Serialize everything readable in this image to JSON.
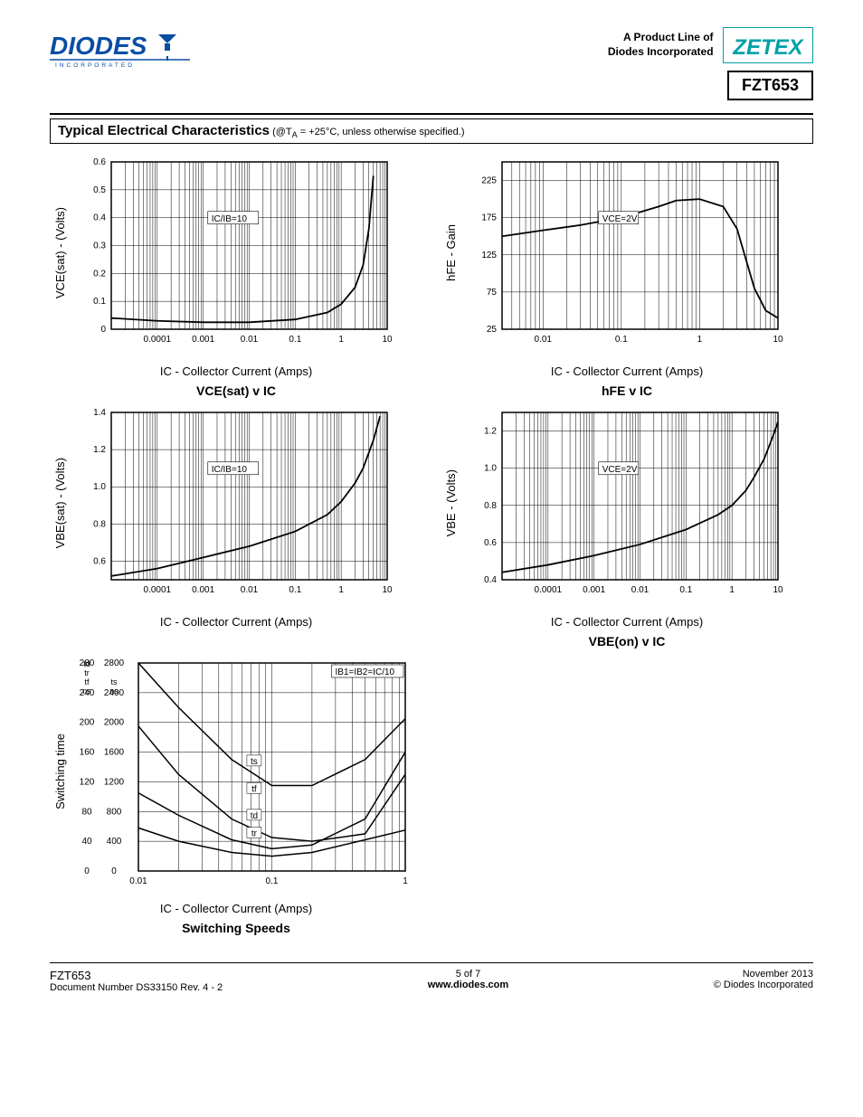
{
  "header": {
    "tagline_line1": "A Product Line of",
    "tagline_line2": "Diodes Incorporated",
    "part_number": "FZT653",
    "diodes_label": "INCORPORATED",
    "zetex_label": "ZETEX"
  },
  "section": {
    "title": "Typical Electrical Characteristics",
    "subtitle": " (@T",
    "subtitle_sub": "A",
    "subtitle_tail": " = +25°C, unless otherwise specified.)"
  },
  "colors": {
    "diodes_blue": "#0b4ea2",
    "zetex_teal": "#00a0a8",
    "line": "#000000",
    "grid": "#000000",
    "bg": "#ffffff"
  },
  "chart1": {
    "type": "line",
    "ylabel": "VCE(sat) - (Volts)",
    "xlabel": "IC - Collector Current (Amps)",
    "title": "VCE(sat) v IC",
    "annotation": "IC/IB=10",
    "x_ticks": [
      "0.0001",
      "0.001",
      "0.01",
      "0.1",
      "1",
      "10"
    ],
    "y_ticks": [
      "0",
      "0.1",
      "0.2",
      "0.3",
      "0.4",
      "0.5",
      "0.6"
    ],
    "xlim": [
      1e-05,
      10
    ],
    "ylim": [
      0,
      0.6
    ],
    "x_scale": "log",
    "points_x": [
      1e-05,
      0.0001,
      0.001,
      0.01,
      0.1,
      0.5,
      1,
      2,
      3,
      4,
      5
    ],
    "points_y": [
      0.04,
      0.03,
      0.025,
      0.025,
      0.035,
      0.06,
      0.09,
      0.15,
      0.23,
      0.36,
      0.55
    ],
    "line_color": "#000000",
    "line_width": 1.8
  },
  "chart2": {
    "type": "line",
    "ylabel": "hFE - Gain",
    "xlabel": "IC - Collector Current (Amps)",
    "title": "hFE v IC",
    "annotation": "VCE=2V",
    "x_ticks": [
      "0.01",
      "0.1",
      "1",
      "10"
    ],
    "y_ticks": [
      "25",
      "75",
      "125",
      "175",
      "225"
    ],
    "xlim": [
      0.003,
      10
    ],
    "ylim": [
      25,
      250
    ],
    "x_scale": "log",
    "points_x": [
      0.003,
      0.01,
      0.03,
      0.1,
      0.3,
      0.5,
      1,
      2,
      3,
      5,
      7,
      10
    ],
    "points_y": [
      150,
      158,
      165,
      175,
      190,
      198,
      200,
      190,
      160,
      80,
      50,
      40
    ],
    "line_color": "#000000",
    "line_width": 1.8
  },
  "chart3": {
    "type": "line",
    "ylabel": "VBE(sat) - (Volts)",
    "xlabel": "IC - Collector Current (Amps)",
    "title": "",
    "annotation": "IC/IB=10",
    "x_ticks": [
      "0.0001",
      "0.001",
      "0.01",
      "0.1",
      "1",
      "10"
    ],
    "y_ticks": [
      "0.6",
      "0.8",
      "1.0",
      "1.2",
      "1.4"
    ],
    "xlim": [
      1e-05,
      10
    ],
    "ylim": [
      0.5,
      1.4
    ],
    "x_scale": "log",
    "points_x": [
      1e-05,
      0.0001,
      0.001,
      0.01,
      0.1,
      0.5,
      1,
      2,
      3,
      5,
      7
    ],
    "points_y": [
      0.52,
      0.56,
      0.62,
      0.68,
      0.76,
      0.85,
      0.92,
      1.02,
      1.1,
      1.25,
      1.38
    ],
    "line_color": "#000000",
    "line_width": 1.8
  },
  "chart4": {
    "type": "line",
    "ylabel": "VBE - (Volts)",
    "xlabel": "IC - Collector Current (Amps)",
    "title": "VBE(on) v IC",
    "annotation": "VCE=2V",
    "x_ticks": [
      "0.0001",
      "0.001",
      "0.01",
      "0.1",
      "1",
      "10"
    ],
    "y_ticks": [
      "0.4",
      "0.6",
      "0.8",
      "1.0",
      "1.2"
    ],
    "xlim": [
      1e-05,
      10
    ],
    "ylim": [
      0.4,
      1.3
    ],
    "x_scale": "log",
    "points_x": [
      1e-05,
      0.0001,
      0.001,
      0.01,
      0.1,
      0.5,
      1,
      2,
      3,
      5,
      8,
      10
    ],
    "points_y": [
      0.44,
      0.48,
      0.53,
      0.59,
      0.67,
      0.75,
      0.8,
      0.88,
      0.95,
      1.05,
      1.18,
      1.25
    ],
    "line_color": "#000000",
    "line_width": 1.8
  },
  "chart5": {
    "type": "multi-line",
    "ylabel": "Switching time",
    "xlabel": "IC - Collector Current (Amps)",
    "title": "Switching Speeds",
    "annotation": "IB1=IB2=IC/10",
    "x_ticks": [
      "0.01",
      "0.1",
      "1"
    ],
    "xlim": [
      0.01,
      1
    ],
    "x_scale": "log",
    "y1_head": [
      "td",
      "tr",
      "tf",
      "ns"
    ],
    "y1_ticks": [
      "0",
      "40",
      "80",
      "120",
      "160",
      "200",
      "240",
      "280"
    ],
    "y1_lim": [
      0,
      280
    ],
    "y2_head": [
      "",
      "",
      "ts",
      "ns"
    ],
    "y2_ticks": [
      "0",
      "400",
      "800",
      "1200",
      "1600",
      "2000",
      "2400",
      "2800"
    ],
    "y2_lim": [
      0,
      2800
    ],
    "series": [
      {
        "name": "ts",
        "label_x": 0.065,
        "label_y": 145,
        "x": [
          0.01,
          0.02,
          0.05,
          0.1,
          0.2,
          0.5,
          1
        ],
        "y": [
          280,
          220,
          150,
          115,
          115,
          150,
          205
        ],
        "axis": "left"
      },
      {
        "name": "tf",
        "label_x": 0.065,
        "label_y": 108,
        "x": [
          0.01,
          0.02,
          0.05,
          0.1,
          0.2,
          0.5,
          1
        ],
        "y": [
          195,
          130,
          70,
          45,
          40,
          50,
          130
        ],
        "axis": "left"
      },
      {
        "name": "td",
        "label_x": 0.065,
        "label_y": 72,
        "x": [
          0.01,
          0.02,
          0.05,
          0.1,
          0.2,
          0.5,
          1
        ],
        "y": [
          105,
          75,
          42,
          30,
          35,
          70,
          160
        ],
        "axis": "left"
      },
      {
        "name": "tr",
        "label_x": 0.065,
        "label_y": 48,
        "x": [
          0.01,
          0.02,
          0.05,
          0.1,
          0.2,
          0.5,
          1
        ],
        "y": [
          58,
          40,
          25,
          20,
          25,
          42,
          55
        ],
        "axis": "left"
      }
    ],
    "line_color": "#000000",
    "line_width": 1.5
  },
  "footer": {
    "part": "FZT653",
    "doc": "Document Number DS33150 Rev. 4 - 2",
    "page": "5 of 7",
    "url": "www.diodes.com",
    "date": "November 2013",
    "copy": "© Diodes Incorporated"
  }
}
